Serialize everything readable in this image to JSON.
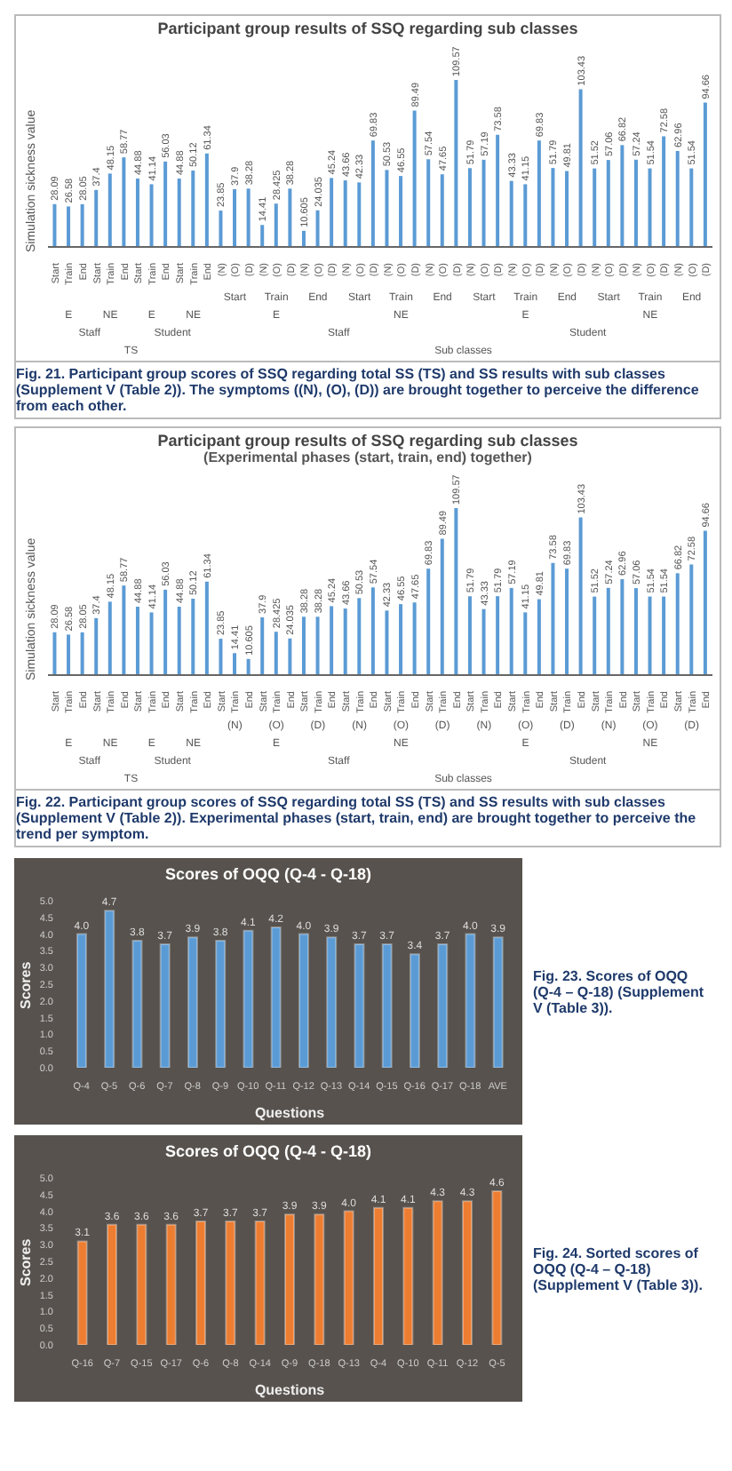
{
  "chart_data": [
    {
      "type": "bar",
      "title": "Participant group results of SSQ regarding sub classes",
      "ylabel": "Simulation sickness value",
      "color": "#5b9bd5",
      "data_labels": true,
      "categories": [
        "Start",
        "Train",
        "End",
        "Start",
        "Train",
        "End",
        "Start",
        "Train",
        "End",
        "Start",
        "Train",
        "End",
        "(N)",
        "(O)",
        "(D)",
        "(N)",
        "(O)",
        "(D)",
        "(N)",
        "(O)",
        "(D)",
        "(N)",
        "(O)",
        "(D)",
        "(N)",
        "(O)",
        "(D)",
        "(N)",
        "(O)",
        "(D)",
        "(N)",
        "(O)",
        "(D)",
        "(N)",
        "(O)",
        "(D)",
        "(N)",
        "(O)",
        "(D)",
        "(N)",
        "(O)",
        "(D)",
        "(N)",
        "(O)",
        "(D)",
        "(N)",
        "(O)",
        "(D)"
      ],
      "values": [
        28.09,
        26.58,
        28.05,
        37.4,
        48.15,
        58.77,
        44.88,
        41.14,
        56.03,
        44.88,
        50.12,
        61.34,
        23.85,
        37.9,
        38.28,
        14.41,
        28.425,
        38.28,
        10.605,
        24.035,
        45.24,
        43.66,
        42.33,
        69.83,
        50.53,
        46.55,
        89.49,
        57.54,
        47.65,
        109.57,
        51.79,
        57.19,
        73.58,
        43.33,
        41.15,
        69.83,
        51.79,
        49.81,
        103.43,
        51.52,
        57.06,
        66.82,
        57.24,
        51.54,
        72.58,
        62.96,
        51.54,
        94.66
      ],
      "annotations": [
        "Start",
        "Train",
        "End",
        "Start",
        "Train",
        "End",
        "Start",
        "Train",
        "End",
        "Start",
        "Train",
        "End",
        "E",
        "NE",
        "E",
        "NE",
        "E",
        "NE",
        "E",
        "NE",
        "Staff",
        "Student",
        "Staff",
        "Student",
        "TS",
        "Sub classes",
        "Fig. 21. Participant group scores of SSQ regarding total SS (TS) and SS results with sub classes (Supplement V (Table 2)). The symptoms ((N), (O), (D)) are brought together to perceive the difference from each other."
      ]
    },
    {
      "type": "bar",
      "title": "Participant group results of SSQ regarding sub classes",
      "subtitle": "(Experimental phases (start, train, end) together)",
      "ylabel": "Simulation sickness value",
      "color": "#5b9bd5",
      "data_labels": true,
      "categories": [
        "Start",
        "Train",
        "End",
        "Start",
        "Train",
        "End",
        "Start",
        "Train",
        "End",
        "Start",
        "Train",
        "End",
        "Start",
        "Train",
        "End",
        "Start",
        "Train",
        "End",
        "Start",
        "Train",
        "End",
        "Start",
        "Train",
        "End",
        "Start",
        "Train",
        "End",
        "Start",
        "Train",
        "End",
        "Start",
        "Train",
        "End",
        "Start",
        "Train",
        "End",
        "Start",
        "Train",
        "End",
        "Start",
        "Train",
        "End",
        "Start",
        "Train",
        "End",
        "Start",
        "Train",
        "End"
      ],
      "values": [
        28.09,
        26.58,
        28.05,
        37.4,
        48.15,
        58.77,
        44.88,
        41.14,
        56.03,
        44.88,
        50.12,
        61.34,
        23.85,
        14.41,
        10.605,
        37.9,
        28.425,
        24.035,
        38.28,
        38.28,
        45.24,
        43.66,
        50.53,
        57.54,
        42.33,
        46.55,
        47.65,
        69.83,
        89.49,
        109.57,
        51.79,
        43.33,
        51.79,
        57.19,
        41.15,
        49.81,
        73.58,
        69.83,
        103.43,
        51.52,
        57.24,
        62.96,
        57.06,
        51.54,
        51.54,
        66.82,
        72.58,
        94.66
      ],
      "annotations": [
        "(N)",
        "(O)",
        "(D)",
        "(N)",
        "(O)",
        "(D)",
        "(N)",
        "(O)",
        "(D)",
        "(N)",
        "(O)",
        "(D)",
        "E",
        "NE",
        "E",
        "NE",
        "E",
        "NE",
        "E",
        "NE",
        "Staff",
        "Student",
        "Staff",
        "Student",
        "TS",
        "Sub classes",
        "Fig. 22. Participant group scores of SSQ regarding total SS (TS) and SS results with sub classes (Supplement V (Table 2)). Experimental phases (start, train, end) are brought together to perceive the trend per symptom."
      ]
    },
    {
      "type": "bar",
      "title": "Scores of OQQ (Q-4 - Q-18)",
      "xlabel": "Questions",
      "ylabel": "Scores",
      "color": "#5b9bd5",
      "categories": [
        "Q-4",
        "Q-5",
        "Q-6",
        "Q-7",
        "Q-8",
        "Q-9",
        "Q-10",
        "Q-11",
        "Q-12",
        "Q-13",
        "Q-14",
        "Q-15",
        "Q-16",
        "Q-17",
        "Q-18",
        "AVE"
      ],
      "values": [
        4.0,
        4.7,
        3.8,
        3.7,
        3.9,
        3.8,
        4.1,
        4.2,
        4.0,
        3.9,
        3.7,
        3.7,
        3.4,
        3.7,
        4.0,
        3.9
      ],
      "value_labels": [
        "4.0",
        "4.7",
        "3.8",
        "3.7",
        "3.9",
        "3.8",
        "4.1",
        "4.2",
        "4.0",
        "3.9",
        "3.7",
        "3.7",
        "3.4",
        "3.7",
        "4.0",
        "3.9"
      ],
      "ylim": [
        0,
        5
      ],
      "yticks": [
        {
          "value": 0,
          "label": "0.0"
        },
        {
          "value": 0.5,
          "label": "0.5"
        },
        {
          "value": 1,
          "label": "1.0"
        },
        {
          "value": 1.5,
          "label": "1.5"
        },
        {
          "value": 2,
          "label": "2.0"
        },
        {
          "value": 2.5,
          "label": "2.5"
        },
        {
          "value": 3,
          "label": "3.0"
        },
        {
          "value": 3.5,
          "label": "3.5"
        },
        {
          "value": 4,
          "label": "4.0"
        },
        {
          "value": 4.5,
          "label": "4.5"
        },
        {
          "value": 5,
          "label": "5.0"
        }
      ],
      "annotations": [
        "Fig. 23. Scores of OQQ (Q-4 – Q-18) (Supplement V (Table 3))."
      ]
    },
    {
      "type": "bar",
      "title": "Scores of OQQ (Q-4 - Q-18)",
      "xlabel": "Questions",
      "ylabel": "Scores",
      "color": "#ed7d31",
      "categories": [
        "Q-16",
        "Q-7",
        "Q-15",
        "Q-17",
        "Q-6",
        "Q-8",
        "Q-14",
        "Q-9",
        "Q-18",
        "Q-13",
        "Q-4",
        "Q-10",
        "Q-11",
        "Q-12",
        "Q-5"
      ],
      "values": [
        3.1,
        3.6,
        3.6,
        3.6,
        3.7,
        3.7,
        3.7,
        3.9,
        3.9,
        4.0,
        4.1,
        4.1,
        4.3,
        4.3,
        4.6
      ],
      "value_labels": [
        "3.1",
        "3.6",
        "3.6",
        "3.6",
        "3.7",
        "3.7",
        "3.7",
        "3.9",
        "3.9",
        "4.0",
        "4.1",
        "4.1",
        "4.3",
        "4.3",
        "4.6"
      ],
      "ylim": [
        0,
        5
      ],
      "yticks": [
        {
          "value": 0,
          "label": "0.0"
        },
        {
          "value": 0.5,
          "label": "0.5"
        },
        {
          "value": 1,
          "label": "1.0"
        },
        {
          "value": 1.5,
          "label": "1.5"
        },
        {
          "value": 2,
          "label": "2.0"
        },
        {
          "value": 2.5,
          "label": "2.5"
        },
        {
          "value": 3,
          "label": "3.0"
        },
        {
          "value": 3.5,
          "label": "3.5"
        },
        {
          "value": 4,
          "label": "4.0"
        },
        {
          "value": 4.5,
          "label": "4.5"
        },
        {
          "value": 5,
          "label": "5.0"
        }
      ],
      "annotations": [
        "Fig. 24. Sorted scores of OQQ (Q-4 – Q-18) (Supplement V (Table 3))."
      ]
    }
  ]
}
